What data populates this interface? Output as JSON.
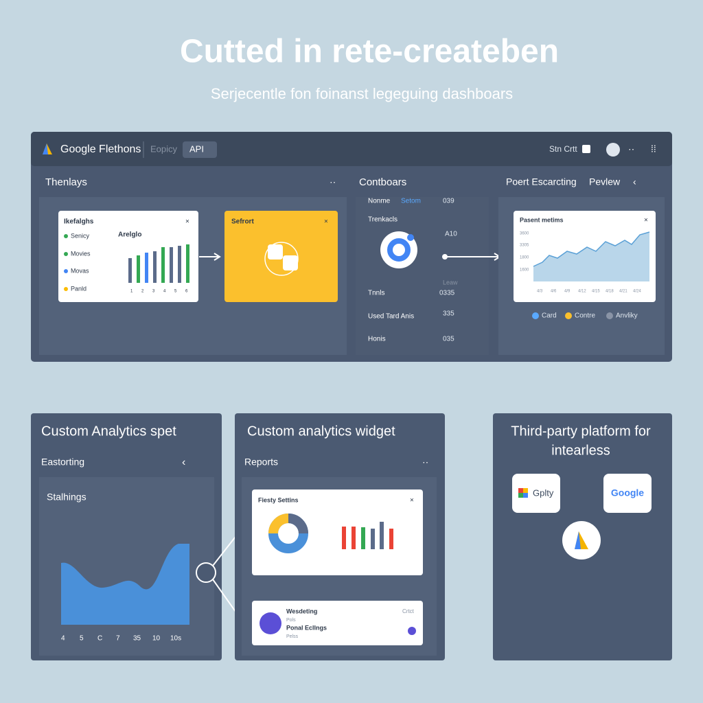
{
  "header": {
    "title": "Cutted in rete-createben",
    "subtitle": "Serjecentle fon foinanst legeguing dashboars"
  },
  "top_panel": {
    "topbar": {
      "brand": "Google Flethons",
      "tab": "Eopicy",
      "api": "API",
      "search": "Stn Crtt"
    },
    "left": {
      "title": "Thenlays",
      "card": {
        "title": "Ikefalghs",
        "subtitle": "Arelglo",
        "legend": [
          "Senicy",
          "Movies",
          "Movas",
          "Panld"
        ],
        "x_labels": [
          "1",
          "2",
          "3",
          "4",
          "5",
          "6"
        ]
      },
      "highlight": {
        "title": "Sefrort"
      }
    },
    "middle": {
      "title": "Contboars",
      "rows": [
        {
          "label": "Nonme",
          "tag": "Setom",
          "value": "039"
        },
        {
          "label": "Trenkacls",
          "value": "A10"
        },
        {
          "label": "Tnnls",
          "value": "0335",
          "note": "Leaw"
        },
        {
          "label": "Used Tard Anis",
          "value": "335"
        },
        {
          "label": "Honis",
          "value": "035"
        }
      ]
    },
    "right": {
      "title": "Poert Escarcting",
      "action": "Pevlew",
      "card": {
        "title": "Pasent metims",
        "y_labels": [
          "3600",
          "3305",
          "1800",
          "1600"
        ],
        "x_labels": [
          "4/3",
          "4/6",
          "4/9",
          "4/12",
          "4/15",
          "4/18",
          "4/21",
          "4/24"
        ]
      },
      "legend": [
        "Card",
        "Contre",
        "Anvliky"
      ]
    }
  },
  "bottom": {
    "left": {
      "title": "Custom Analytics spet",
      "section": "Eastorting",
      "chart_title": "Stalhings",
      "x_labels": [
        "4",
        "5",
        "C",
        "7",
        "35",
        "10",
        "10s"
      ]
    },
    "middle": {
      "title": "Custom analytics widget",
      "section": "Reports",
      "card": {
        "title": "Fiesty Settins"
      },
      "item": {
        "title": "Wesdeting",
        "line1": "Pols",
        "line2": "Ponal Ecllngs",
        "line3": "Pelss",
        "action": "Crtct"
      }
    },
    "right": {
      "title_line1": "Third-party platform for",
      "title_line2": "intearless",
      "logos": [
        "Gplty",
        "Google"
      ]
    }
  }
}
